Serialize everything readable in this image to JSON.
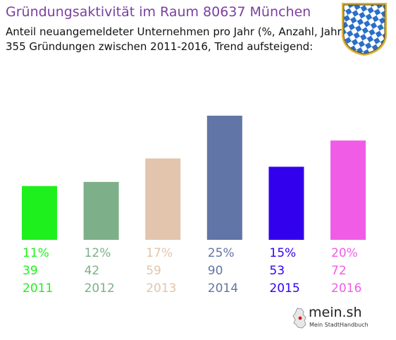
{
  "title": "Gründungsaktivität im Raum 80637 München",
  "subtitle_line1": "Anteil neuangemeldeter Unternehmen pro Jahr (%, Anzahl, Jahr)",
  "subtitle_line2": "355 Gründungen zwischen 2011-2016, Trend aufsteigend:",
  "crest": {
    "icon": "bavaria-crest-icon",
    "colors": [
      "#2a6fc9",
      "#ffffff"
    ]
  },
  "brand": {
    "name": "mein.sh",
    "tagline": "Mein StadtHandbuch"
  },
  "chart_data": {
    "type": "bar",
    "categories": [
      "2011",
      "2012",
      "2013",
      "2014",
      "2015",
      "2016"
    ],
    "percent_labels": [
      "11%",
      "12%",
      "17%",
      "25%",
      "15%",
      "20%"
    ],
    "values": [
      39,
      42,
      59,
      90,
      53,
      72
    ],
    "colors": [
      "#1ef01e",
      "#7db089",
      "#e2c5ac",
      "#6175a6",
      "#3300ee",
      "#f05ce6"
    ],
    "ylim": [
      0,
      90
    ],
    "grid": false,
    "legend": "none"
  }
}
